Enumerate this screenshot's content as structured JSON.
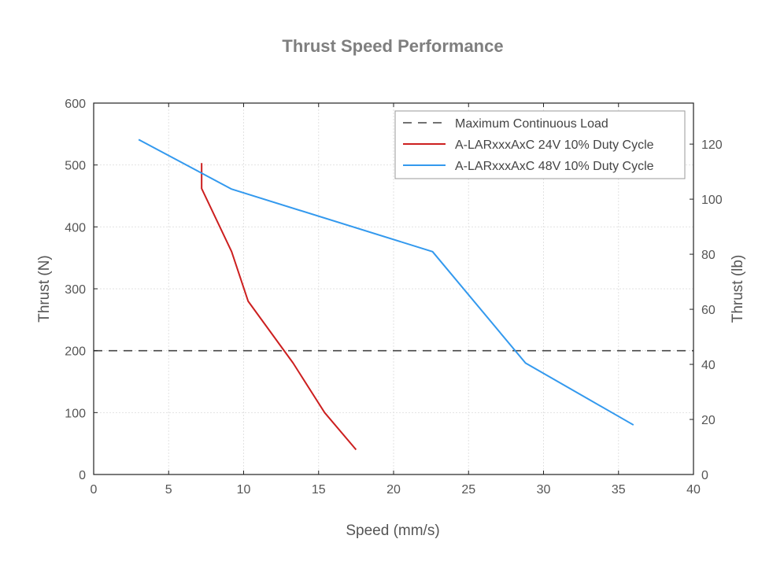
{
  "chart_data": {
    "type": "line",
    "title": "Thrust Speed Performance",
    "xlabel": "Speed (mm/s)",
    "ylabel": "Thrust (N)",
    "ylabel_right": "Thrust (lb)",
    "xlim": [
      0,
      40
    ],
    "ylim": [
      0,
      600
    ],
    "ylim_right": [
      0,
      134.9
    ],
    "x_ticks": [
      0,
      5,
      10,
      15,
      20,
      25,
      30,
      35,
      40
    ],
    "y_ticks": [
      0,
      100,
      200,
      300,
      400,
      500,
      600
    ],
    "y_ticks_right": [
      0,
      20,
      40,
      60,
      80,
      100,
      120
    ],
    "grid": true,
    "legend_position": "top-right",
    "series": [
      {
        "name": "Maximum Continuous Load",
        "color": "#444444",
        "style": "dashed",
        "points": [
          [
            0,
            200
          ],
          [
            40,
            200
          ]
        ]
      },
      {
        "name": "A-LARxxxAxC 24V 10% Duty Cycle",
        "color": "#cc1f1f",
        "style": "solid",
        "points": [
          [
            7.2,
            503
          ],
          [
            7.2,
            462
          ],
          [
            9.2,
            360
          ],
          [
            10.3,
            280
          ],
          [
            13.3,
            180
          ],
          [
            15.4,
            100
          ],
          [
            17.5,
            40
          ]
        ]
      },
      {
        "name": "A-LARxxxAxC 48V 10% Duty Cycle",
        "color": "#3399ee",
        "style": "solid",
        "points": [
          [
            3.0,
            541
          ],
          [
            9.2,
            461
          ],
          [
            22.6,
            360
          ],
          [
            28.8,
            180
          ],
          [
            36.0,
            80
          ]
        ]
      }
    ]
  }
}
